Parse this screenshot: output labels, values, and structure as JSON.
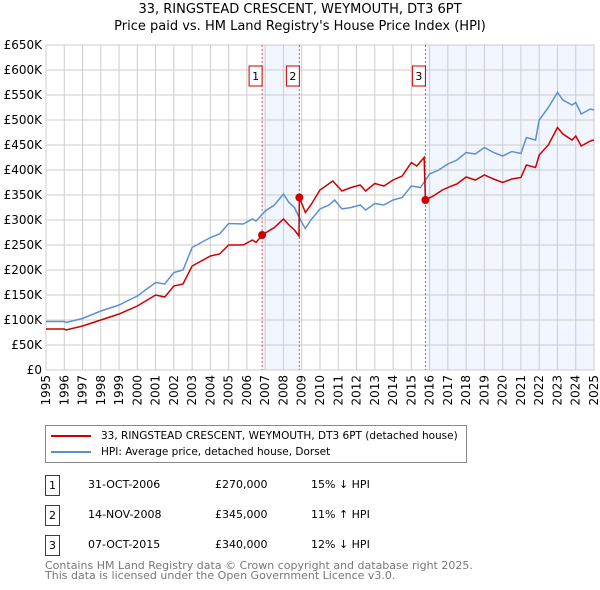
{
  "chart_data": {
    "type": "line",
    "title": "33, RINGSTEAD CRESCENT, WEYMOUTH, DT3 6PT",
    "subtitle": "Price paid vs. HM Land Registry's House Price Index (HPI)",
    "xlim": [
      1995,
      2025
    ],
    "ylim": [
      0,
      650000
    ],
    "x_ticks": [
      "1995",
      "1996",
      "1997",
      "1998",
      "1999",
      "2000",
      "2001",
      "2002",
      "2003",
      "2004",
      "2005",
      "2006",
      "2007",
      "2008",
      "2009",
      "2010",
      "2011",
      "2012",
      "2013",
      "2014",
      "2015",
      "2016",
      "2017",
      "2018",
      "2019",
      "2020",
      "2021",
      "2022",
      "2023",
      "2024",
      "2025"
    ],
    "y_ticks": [
      "£0",
      "£50K",
      "£100K",
      "£150K",
      "£200K",
      "£250K",
      "£300K",
      "£350K",
      "£400K",
      "£450K",
      "£500K",
      "£550K",
      "£600K",
      "£650K"
    ],
    "grid": true,
    "shaded_ranges": [
      [
        2006.83,
        2008.87
      ],
      [
        2015.77,
        2025
      ]
    ],
    "series": [
      {
        "name": "33, RINGSTEAD CRESCENT, WEYMOUTH, DT3 6PT (detached house)",
        "color": "#cc0000",
        "x": [
          1995,
          1996,
          1996.1,
          1997,
          1998,
          1999,
          2000,
          2001,
          2001.5,
          2002,
          2002.5,
          2003,
          2004,
          2004.5,
          2005,
          2005.8,
          2006.3,
          2006.5,
          2006.83,
          2007.5,
          2008,
          2008.3,
          2008.6,
          2008.85,
          2008.87,
          2009.2,
          2009.5,
          2010,
          2010.7,
          2011.2,
          2011.7,
          2012.2,
          2012.5,
          2013,
          2013.5,
          2014,
          2014.5,
          2015,
          2015.3,
          2015.7,
          2015.77,
          2016.2,
          2016.7,
          2017.2,
          2017.5,
          2018,
          2018.5,
          2019,
          2019.5,
          2020,
          2020.5,
          2021,
          2021.3,
          2021.8,
          2022,
          2022.5,
          2023,
          2023.3,
          2023.8,
          2024,
          2024.3,
          2024.8,
          2025
        ],
        "y": [
          82,
          82,
          80,
          88,
          100,
          112,
          128,
          150,
          146,
          168,
          172,
          208,
          228,
          232,
          250,
          250,
          260,
          255,
          270,
          285,
          302,
          290,
          280,
          268,
          345,
          315,
          330,
          360,
          378,
          358,
          365,
          370,
          358,
          373,
          368,
          380,
          388,
          415,
          408,
          425,
          340,
          348,
          360,
          368,
          372,
          386,
          380,
          390,
          382,
          375,
          382,
          385,
          410,
          405,
          430,
          450,
          485,
          472,
          460,
          468,
          448,
          458,
          460
        ]
      },
      {
        "name": "HPI: Average price, detached house, Dorset",
        "color": "#5b8fd4",
        "x": [
          1995,
          1996,
          1996.1,
          1997,
          1998,
          1999,
          2000,
          2001,
          2001.5,
          2002,
          2002.5,
          2003,
          2004,
          2004.5,
          2005,
          2005.8,
          2006.3,
          2006.5,
          2007,
          2007.5,
          2008,
          2008.3,
          2008.6,
          2009,
          2009.2,
          2009.5,
          2010,
          2010.5,
          2010.8,
          2011.2,
          2011.7,
          2012.2,
          2012.5,
          2013,
          2013.5,
          2014,
          2014.5,
          2015,
          2015.5,
          2016,
          2016.5,
          2017,
          2017.5,
          2018,
          2018.5,
          2019,
          2019.5,
          2020,
          2020.5,
          2021,
          2021.3,
          2021.8,
          2022,
          2022.5,
          2023,
          2023.3,
          2023.8,
          2024,
          2024.3,
          2024.8,
          2025
        ],
        "y": [
          97,
          97,
          95,
          103,
          118,
          130,
          148,
          175,
          172,
          195,
          200,
          245,
          265,
          272,
          293,
          292,
          302,
          298,
          318,
          330,
          352,
          335,
          325,
          295,
          283,
          300,
          322,
          330,
          340,
          322,
          325,
          330,
          320,
          333,
          330,
          340,
          345,
          368,
          365,
          392,
          400,
          412,
          420,
          435,
          432,
          445,
          435,
          428,
          437,
          433,
          465,
          460,
          500,
          525,
          555,
          540,
          530,
          535,
          512,
          522,
          520
        ]
      }
    ],
    "sales": [
      {
        "num": "1",
        "date": "31-OCT-2006",
        "x": 2006.83,
        "price": 270000,
        "price_label": "£270,000",
        "hpi": "15% ↓ HPI"
      },
      {
        "num": "2",
        "date": "14-NOV-2008",
        "x": 2008.87,
        "price": 345000,
        "price_label": "£345,000",
        "hpi": "11% ↑ HPI"
      },
      {
        "num": "3",
        "date": "07-OCT-2015",
        "x": 2015.77,
        "price": 340000,
        "price_label": "£340,000",
        "hpi": "12% ↓ HPI"
      }
    ],
    "footer": [
      "Contains HM Land Registry data © Crown copyright and database right 2025.",
      "This data is licensed under the Open Government Licence v3.0."
    ]
  }
}
